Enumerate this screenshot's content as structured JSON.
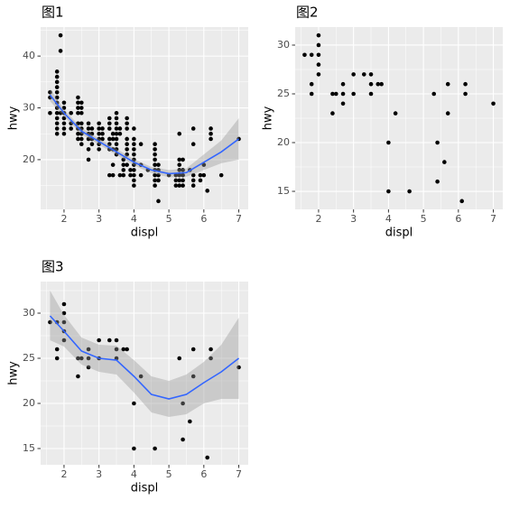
{
  "chart_data": [
    {
      "type": "scatter",
      "title": "图1",
      "xlabel": "displ",
      "ylabel": "hwy",
      "xlim": [
        1.33,
        7.27
      ],
      "ylim": [
        10.4,
        45.6
      ],
      "xticks": [
        2,
        3,
        4,
        5,
        6,
        7
      ],
      "yticks": [
        20,
        30,
        40
      ],
      "grid": true,
      "color": "#000000",
      "x": [
        1.6,
        1.6,
        1.6,
        1.8,
        1.8,
        1.8,
        1.8,
        1.8,
        1.8,
        1.8,
        1.8,
        1.8,
        1.8,
        1.8,
        1.8,
        1.8,
        1.9,
        1.9,
        1.9,
        2.0,
        2.0,
        2.0,
        2.0,
        2.0,
        2.0,
        2.0,
        2.2,
        2.2,
        2.2,
        2.4,
        2.4,
        2.4,
        2.4,
        2.4,
        2.4,
        2.4,
        2.4,
        2.5,
        2.5,
        2.5,
        2.5,
        2.5,
        2.5,
        2.5,
        2.5,
        2.7,
        2.7,
        2.7,
        2.7,
        2.7,
        2.7,
        2.8,
        2.8,
        2.8,
        2.8,
        3.0,
        3.0,
        3.0,
        3.0,
        3.0,
        3.0,
        3.1,
        3.1,
        3.1,
        3.3,
        3.3,
        3.3,
        3.3,
        3.3,
        3.3,
        3.3,
        3.4,
        3.4,
        3.4,
        3.4,
        3.4,
        3.5,
        3.5,
        3.5,
        3.5,
        3.5,
        3.5,
        3.5,
        3.5,
        3.5,
        3.6,
        3.6,
        3.6,
        3.7,
        3.7,
        3.7,
        3.7,
        3.8,
        3.8,
        3.8,
        3.8,
        3.8,
        3.8,
        3.8,
        3.8,
        3.9,
        3.9,
        4.0,
        4.0,
        4.0,
        4.0,
        4.0,
        4.0,
        4.0,
        4.0,
        4.0,
        4.0,
        4.0,
        4.2,
        4.2,
        4.2,
        4.4,
        4.6,
        4.6,
        4.6,
        4.6,
        4.6,
        4.6,
        4.6,
        4.6,
        4.6,
        4.7,
        4.7,
        4.7,
        4.7,
        4.7,
        5.0,
        5.2,
        5.2,
        5.2,
        5.3,
        5.3,
        5.3,
        5.3,
        5.3,
        5.3,
        5.3,
        5.4,
        5.4,
        5.4,
        5.4,
        5.4,
        5.6,
        5.7,
        5.7,
        5.7,
        5.7,
        5.7,
        5.9,
        5.9,
        6.0,
        6.0,
        6.1,
        6.2,
        6.2,
        6.2,
        6.5,
        7.0
      ],
      "values": [
        29,
        32,
        33,
        25,
        26,
        27,
        28,
        29,
        30,
        31,
        32,
        33,
        34,
        35,
        36,
        37,
        41,
        44,
        29,
        25,
        26,
        27,
        28,
        29,
        30,
        31,
        26,
        27,
        29,
        24,
        25,
        26,
        27,
        29,
        30,
        31,
        32,
        23,
        24,
        25,
        26,
        27,
        29,
        30,
        31,
        20,
        22,
        24,
        25,
        26,
        27,
        23,
        24,
        25,
        26,
        22,
        23,
        24,
        25,
        26,
        27,
        24,
        25,
        26,
        17,
        22,
        23,
        24,
        26,
        27,
        28,
        17,
        19,
        22,
        24,
        25,
        21,
        22,
        23,
        24,
        25,
        26,
        27,
        28,
        29,
        17,
        25,
        26,
        17,
        18,
        19,
        20,
        19,
        21,
        22,
        23,
        24,
        26,
        27,
        28,
        17,
        18,
        15,
        16,
        17,
        18,
        19,
        20,
        21,
        22,
        23,
        24,
        26,
        17,
        19,
        23,
        18,
        15,
        16,
        17,
        18,
        19,
        20,
        21,
        22,
        23,
        12,
        16,
        17,
        18,
        19,
        17,
        15,
        16,
        17,
        15,
        16,
        17,
        18,
        19,
        20,
        25,
        15,
        16,
        17,
        18,
        20,
        18,
        15,
        16,
        17,
        23,
        26,
        16,
        17,
        17,
        19,
        14,
        24,
        25,
        26,
        17,
        24
      ],
      "smooth": {
        "color": "#3366ff",
        "band_color": "#999999",
        "x": [
          1.6,
          2,
          2.5,
          3,
          3.5,
          4,
          4.5,
          5,
          5.5,
          6,
          6.5,
          7
        ],
        "values": [
          32.5,
          29,
          25.5,
          23.5,
          21.5,
          19.5,
          18,
          17.3,
          17.5,
          19.5,
          21.5,
          24
        ],
        "lower": [
          31.3,
          28.3,
          24.9,
          22.9,
          20.9,
          18.9,
          17.4,
          16.6,
          16.7,
          18,
          19.3,
          20
        ],
        "upper": [
          33.7,
          29.7,
          26.1,
          24.1,
          22.1,
          20.1,
          18.6,
          18,
          18.3,
          21,
          23.7,
          28
        ]
      }
    },
    {
      "type": "scatter",
      "title": "图2",
      "xlabel": "displ",
      "ylabel": "hwy",
      "xlim": [
        1.33,
        7.27
      ],
      "ylim": [
        13.15,
        31.85
      ],
      "xticks": [
        2,
        3,
        4,
        5,
        6,
        7
      ],
      "yticks": [
        15,
        20,
        25,
        30
      ],
      "grid": true,
      "color": "#000000",
      "x": [
        1.6,
        1.8,
        1.8,
        1.8,
        2.0,
        2.0,
        2.0,
        2.0,
        2.0,
        2.4,
        2.4,
        2.5,
        2.7,
        2.7,
        2.7,
        3.0,
        3.0,
        3.3,
        3.5,
        3.5,
        3.5,
        3.7,
        3.8,
        4.0,
        4.0,
        4.2,
        4.6,
        5.3,
        5.4,
        5.4,
        5.6,
        5.7,
        5.7,
        6.1,
        6.2,
        6.2,
        7.0
      ],
      "values": [
        29,
        29,
        26,
        25,
        31,
        30,
        29,
        28,
        27,
        23,
        25,
        25,
        24,
        25,
        26,
        25,
        27,
        27,
        25,
        26,
        27,
        26,
        26,
        20,
        15,
        23,
        15,
        25,
        20,
        16,
        18,
        23,
        26,
        14,
        25,
        26,
        24
      ]
    },
    {
      "type": "scatter",
      "title": "图3",
      "xlabel": "displ",
      "ylabel": "hwy",
      "xlim": [
        1.33,
        7.27
      ],
      "ylim": [
        13.2,
        33.5
      ],
      "xticks": [
        2,
        3,
        4,
        5,
        6,
        7
      ],
      "yticks": [
        15,
        20,
        25,
        30
      ],
      "grid": true,
      "color": "#000000",
      "x": [
        1.6,
        1.8,
        1.8,
        1.8,
        2.0,
        2.0,
        2.0,
        2.0,
        2.0,
        2.4,
        2.4,
        2.5,
        2.7,
        2.7,
        2.7,
        3.0,
        3.0,
        3.3,
        3.5,
        3.5,
        3.5,
        3.7,
        3.8,
        4.0,
        4.0,
        4.2,
        4.6,
        5.3,
        5.4,
        5.4,
        5.6,
        5.7,
        5.7,
        6.1,
        6.2,
        6.2,
        7.0
      ],
      "values": [
        29,
        29,
        26,
        25,
        31,
        30,
        29,
        28,
        27,
        23,
        25,
        25,
        24,
        25,
        26,
        25,
        27,
        27,
        25,
        26,
        27,
        26,
        26,
        20,
        15,
        23,
        15,
        25,
        20,
        16,
        18,
        23,
        26,
        14,
        25,
        26,
        24
      ],
      "smooth": {
        "color": "#3366ff",
        "band_color": "#999999",
        "x": [
          1.6,
          2,
          2.5,
          3,
          3.5,
          4,
          4.5,
          5,
          5.5,
          6,
          6.5,
          7
        ],
        "values": [
          29.7,
          28,
          25.8,
          25,
          24.8,
          23,
          21,
          20.5,
          21,
          22.3,
          23.5,
          25
        ],
        "lower": [
          27,
          26.3,
          24.3,
          23.5,
          23.2,
          21.2,
          19,
          18.5,
          18.8,
          20,
          20.5,
          20.5
        ],
        "upper": [
          32.5,
          29.8,
          27.3,
          26.5,
          26.4,
          24.8,
          23,
          22.5,
          23.2,
          24.6,
          26.5,
          29.5
        ]
      }
    }
  ]
}
